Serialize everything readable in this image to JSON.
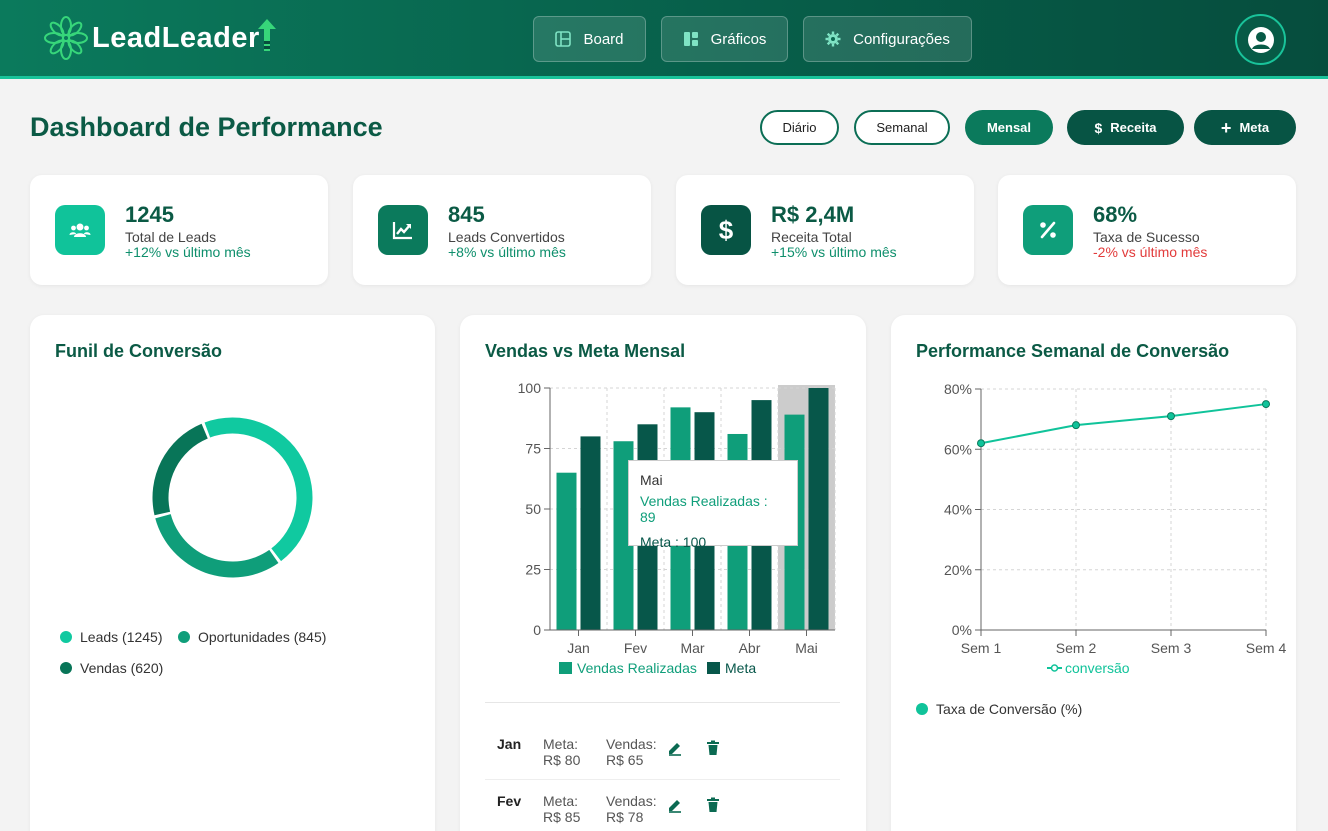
{
  "brand": {
    "name_part1": "Lead",
    "name_part2": "Leader",
    "accent": "#37d67a"
  },
  "nav": [
    {
      "label": "Board",
      "icon": "board-icon"
    },
    {
      "label": "Gráficos",
      "icon": "charts-icon"
    },
    {
      "label": "Configurações",
      "icon": "gear-icon"
    }
  ],
  "page": {
    "title": "Dashboard de Performance"
  },
  "filters": {
    "daily": "Diário",
    "weekly": "Semanal",
    "monthly": "Mensal",
    "active": "Mensal"
  },
  "actions": {
    "revenue": "Receita",
    "goal": "Meta"
  },
  "stats": [
    {
      "value": "1245",
      "label": "Total de Leads",
      "delta": "+12% vs último mês",
      "icon": "users-icon",
      "color": "#10c39a"
    },
    {
      "value": "845",
      "label": "Leads Convertidos",
      "delta": "+8% vs último mês",
      "icon": "trend-up-icon",
      "color": "#0b7a5c"
    },
    {
      "value": "R$ 2,4M",
      "label": "Receita Total",
      "delta": "+15% vs último mês",
      "icon": "dollar-icon",
      "color": "#075444"
    },
    {
      "value": "68%",
      "label": "Taxa de Sucesso",
      "delta": "-2% vs último mês",
      "icon": "percent-icon",
      "color": "#0f9e7a"
    }
  ],
  "funnel": {
    "title": "Funil de Conversão",
    "legend": [
      "Leads (1245)",
      "Oportunidades (845)",
      "Vendas (620)"
    ],
    "chart_data": {
      "type": "pie",
      "categories": [
        "Leads",
        "Oportunidades",
        "Vendas"
      ],
      "values": [
        1245,
        845,
        620
      ],
      "colors": [
        "#10c9a0",
        "#0f9e7a",
        "#087558"
      ]
    }
  },
  "sales_chart": {
    "title": "Vendas vs Meta Mensal",
    "legend": [
      "Vendas Realizadas",
      "Meta"
    ],
    "chart_data": {
      "type": "bar",
      "categories": [
        "Jan",
        "Fev",
        "Mar",
        "Abr",
        "Mai"
      ],
      "series": [
        {
          "name": "Vendas Realizadas",
          "values": [
            65,
            78,
            92,
            81,
            89
          ],
          "color": "#0f9e7a"
        },
        {
          "name": "Meta",
          "values": [
            80,
            85,
            90,
            95,
            100
          ],
          "color": "#07574a"
        }
      ],
      "ylim": [
        0,
        100
      ],
      "yticks": [
        0,
        25,
        50,
        75,
        100
      ],
      "highlight": "Mai"
    },
    "tooltip": {
      "title": "Mai",
      "line1": "Vendas Realizadas : 89",
      "line2": "Meta : 100"
    }
  },
  "goals": [
    {
      "month": "Jan",
      "meta_label": "Meta:",
      "meta_value": "R$ 80",
      "sales_label": "Vendas:",
      "sales_value": "R$ 65"
    },
    {
      "month": "Fev",
      "meta_label": "Meta:",
      "meta_value": "R$ 85",
      "sales_label": "Vendas:",
      "sales_value": "R$ 78"
    }
  ],
  "weekly_chart": {
    "title": "Performance Semanal de Conversão",
    "series_legend": "conversão",
    "extra_legend": "Taxa de Conversão (%)",
    "chart_data": {
      "type": "line",
      "x": [
        "Sem 1",
        "Sem 2",
        "Sem 3",
        "Sem 4"
      ],
      "series": [
        {
          "name": "conversão",
          "values": [
            62,
            68,
            71,
            75
          ],
          "color": "#10c39a"
        }
      ],
      "ylim": [
        0,
        80
      ],
      "yticks": [
        "0%",
        "20%",
        "40%",
        "60%",
        "80%"
      ]
    }
  }
}
